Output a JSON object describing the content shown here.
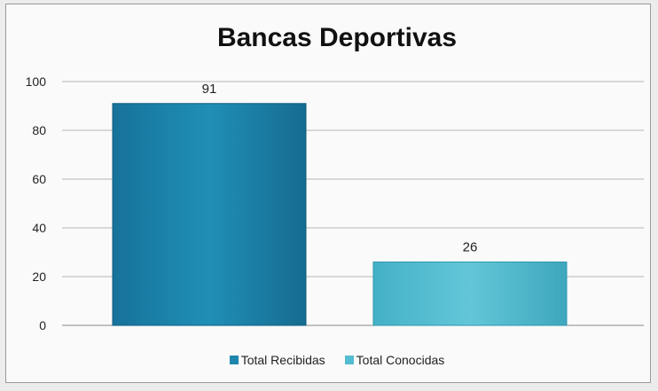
{
  "chart_data": {
    "type": "bar",
    "title": "Bancas Deportivas",
    "categories": [
      "Total Recibidas",
      "Total Conocidas"
    ],
    "values": [
      91,
      26
    ],
    "data_labels": [
      "91",
      "26"
    ],
    "ylim": [
      0,
      100
    ],
    "yticks": [
      0,
      20,
      40,
      60,
      80,
      100
    ],
    "ytick_labels": [
      "0",
      "20",
      "40",
      "60",
      "80",
      "100"
    ],
    "grid": true,
    "legend_position": "bottom",
    "colors": [
      "#1c86ad",
      "#52bcd0"
    ],
    "xlabel": "",
    "ylabel": ""
  }
}
